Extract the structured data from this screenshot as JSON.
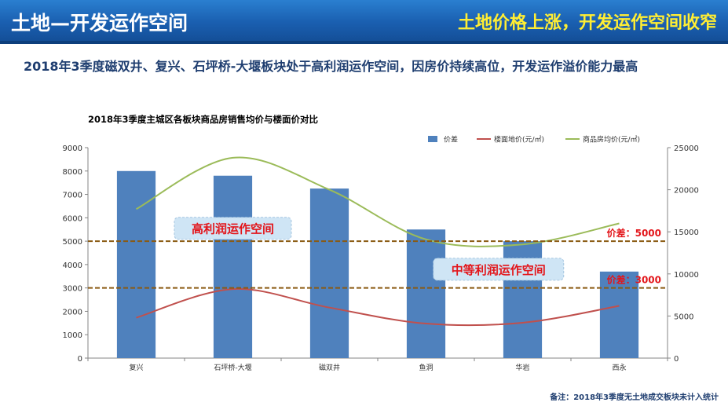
{
  "header": {
    "left_title": "土地—开发运作空间",
    "right_title": "土地价格上涨，开发运作空间收窄"
  },
  "subtitle": "2018年3季度磁双井、复兴、石坪桥-大堰板块处于高利润运作空间，因房价持续高位，开发运作溢价能力最高",
  "footnote": "备注：2018年3季度无土地成交板块未计入统计",
  "chart_data": {
    "type": "bar",
    "title": "2018年3季度主城区各板块商品房销售均价与楼面价对比",
    "categories": [
      "复兴",
      "石坪桥-大堰",
      "磁双井",
      "鱼洞",
      "华岩",
      "西永"
    ],
    "series": [
      {
        "name": "价差",
        "type": "bar",
        "axis": "left",
        "color": "#4f81bd",
        "values": [
          8000,
          7800,
          7250,
          5500,
          5000,
          3700
        ]
      },
      {
        "name": "楼面地价(元/㎡)",
        "type": "line",
        "axis": "right",
        "color": "#c0504d",
        "values": [
          4800,
          8200,
          6000,
          4100,
          4200,
          6200
        ]
      },
      {
        "name": "商品房均价(元/㎡)",
        "type": "line",
        "axis": "right",
        "color": "#9bbb59",
        "values": [
          17700,
          23800,
          20000,
          14100,
          13500,
          16000
        ]
      }
    ],
    "left_axis": {
      "min": 0,
      "max": 9000,
      "ticks": [
        0,
        1000,
        2000,
        3000,
        4000,
        5000,
        6000,
        7000,
        8000,
        9000
      ]
    },
    "right_axis": {
      "min": 0,
      "max": 25000,
      "ticks": [
        0,
        5000,
        10000,
        15000,
        20000,
        25000
      ]
    },
    "reference_lines": [
      {
        "value": 5000,
        "label": "价差：5000"
      },
      {
        "value": 3000,
        "label": "价差：3000"
      }
    ],
    "zone_labels": [
      {
        "text": "高利润运作空间",
        "category_index": 1,
        "level": 5550
      },
      {
        "text": "中等利润运作空间",
        "category_index": 3.75,
        "level": 3800
      }
    ],
    "legend_position": "top-right",
    "grid": false
  }
}
